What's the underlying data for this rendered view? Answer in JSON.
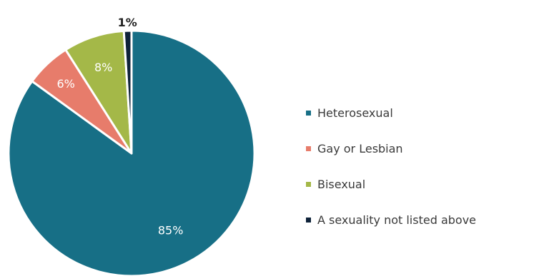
{
  "chart_data": {
    "type": "pie",
    "title": "",
    "slices": [
      {
        "label": "Heterosexual",
        "value": 85,
        "data_label": "85%",
        "color": "#176f86"
      },
      {
        "label": "Gay or Lesbian",
        "value": 6,
        "data_label": "6%",
        "color": "#e77c6b"
      },
      {
        "label": "Bisexual",
        "value": 8,
        "data_label": "8%",
        "color": "#a4b848"
      },
      {
        "label": "A sexuality not listed above",
        "value": 1,
        "data_label": "1%",
        "color": "#0e2239"
      }
    ],
    "legend_position": "right"
  }
}
